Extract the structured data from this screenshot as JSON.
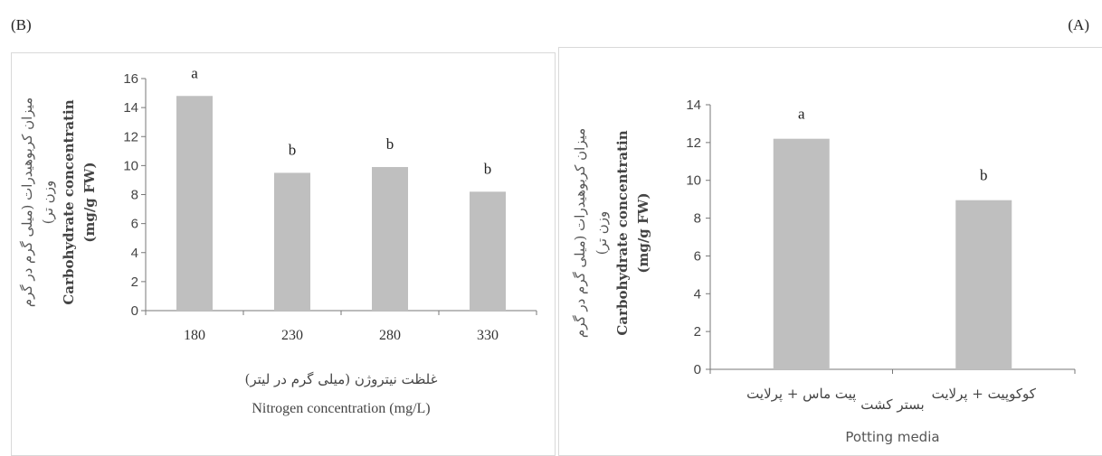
{
  "chart_data": [
    {
      "panel": "(B)",
      "type": "bar",
      "categories": [
        "180",
        "230",
        "280",
        "330"
      ],
      "values": [
        14.8,
        9.5,
        9.9,
        8.2
      ],
      "significance": [
        "a",
        "b",
        "b",
        "b"
      ],
      "ylim": [
        0,
        16
      ],
      "yticks": [
        "0",
        "2",
        "4",
        "6",
        "8",
        "10",
        "12",
        "14",
        "16"
      ],
      "ylabel_fa_1": "میزان کربوهیدرات (میلی گرم در گرم",
      "ylabel_fa_2": "وزن تر)",
      "ylabel_en_1": "Carbohydrate concentratin",
      "ylabel_en_2": "(mg/g FW)",
      "xlabel_fa": "غلظت نیتروژن (میلی گرم در لیتر)",
      "xlabel_en": "Nitrogen concentration (mg/L)",
      "grid": false,
      "color": "#bfbfbf"
    },
    {
      "panel": "(A)",
      "type": "bar",
      "categories": [
        "پیت ماس + پرلایت",
        "کوکوپیت + پرلایت"
      ],
      "values": [
        12.2,
        8.95
      ],
      "significance": [
        "a",
        "b"
      ],
      "ylim": [
        0,
        14
      ],
      "yticks": [
        "0",
        "2",
        "4",
        "6",
        "8",
        "10",
        "12",
        "14"
      ],
      "ylabel_fa_1": "میزان کربوهیدرات (میلی گرم در گرم",
      "ylabel_fa_2": "وزن تر)",
      "ylabel_en_1": "Carbohydrate concentratin",
      "ylabel_en_2": "(mg/g FW)",
      "xlabel_fa": "بستر کشت",
      "xlabel_en": "Potting media",
      "grid": false,
      "color": "#bfbfbf"
    }
  ]
}
